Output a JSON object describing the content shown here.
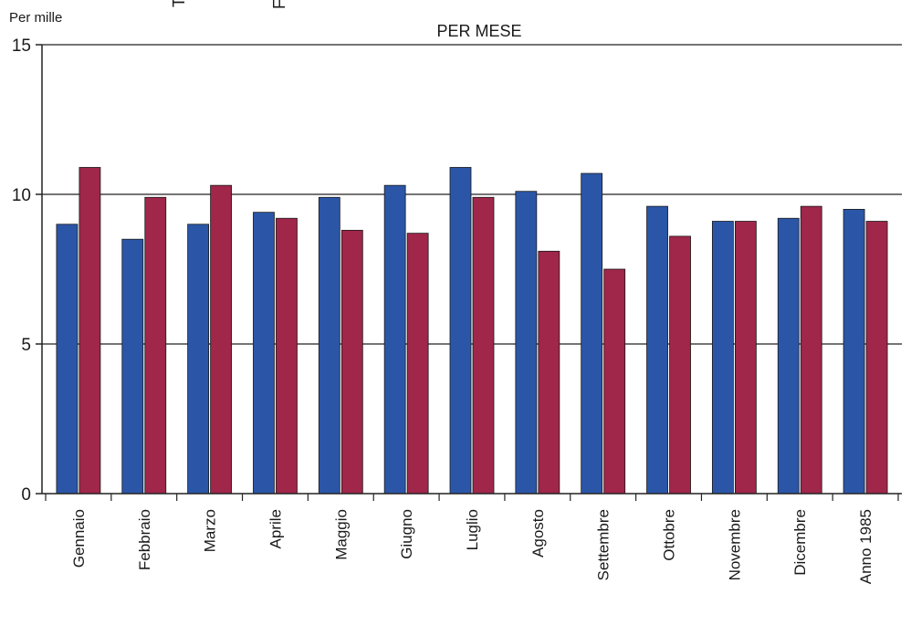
{
  "chart_data": {
    "type": "bar",
    "title": "PER MESE",
    "unit_label": "Per mille",
    "cut_off_text": [
      "T",
      "F"
    ],
    "xlabel": "",
    "ylabel": "",
    "ylim": [
      0,
      15
    ],
    "yticks": [
      "0",
      "5",
      "10",
      "15"
    ],
    "categories": [
      "Gennaio",
      "Febbraio",
      "Marzo",
      "Aprile",
      "Maggio",
      "Giugno",
      "Luglio",
      "Agosto",
      "Settembre",
      "Ottobre",
      "Novembre",
      "Dicembre",
      "Anno 1985"
    ],
    "series": [
      {
        "color": "#2b56a8",
        "values": [
          9.0,
          8.5,
          9.0,
          9.4,
          9.9,
          10.3,
          10.9,
          10.1,
          10.7,
          9.6,
          9.1,
          9.2,
          9.5
        ]
      },
      {
        "color": "#a0264a",
        "values": [
          10.9,
          9.9,
          10.3,
          9.2,
          8.8,
          8.7,
          9.9,
          8.1,
          7.5,
          8.6,
          9.1,
          9.6,
          9.1
        ]
      }
    ],
    "grid": "horizontal lines at 5 and 10",
    "legend": "none"
  }
}
